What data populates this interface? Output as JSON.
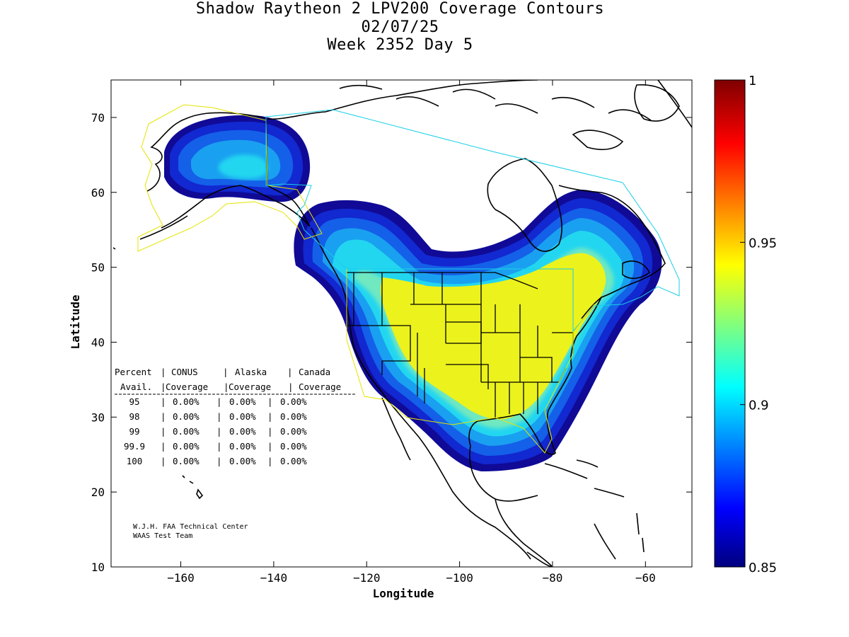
{
  "title": {
    "line1": "Shadow Raytheon 2 LPV200 Coverage Contours",
    "line2": "02/07/25",
    "line3": "Week 2352 Day 5"
  },
  "axes": {
    "xlabel": "Longitude",
    "ylabel": "Latitude",
    "xlim": [
      -175,
      -50
    ],
    "ylim": [
      10,
      75
    ],
    "xticks": [
      -160,
      -140,
      -120,
      -100,
      -80,
      -60
    ],
    "yticks": [
      10,
      20,
      30,
      40,
      50,
      60,
      70
    ]
  },
  "colorbar": {
    "min": 0.85,
    "max": 1,
    "ticks": [
      {
        "value": 0.85,
        "label": "0.85"
      },
      {
        "value": 0.9,
        "label": "0.9"
      },
      {
        "value": 0.95,
        "label": "0.95"
      },
      {
        "value": 1,
        "label": "1"
      }
    ]
  },
  "table": {
    "header1": [
      "Percent",
      "CONUS",
      "Alaska",
      "Canada"
    ],
    "header2": [
      "Avail.",
      "Coverage",
      "Coverage",
      "Coverage"
    ],
    "rows": [
      {
        "pct": "95",
        "conus": "0.00%",
        "alaska": "0.00%",
        "canada": "0.00%"
      },
      {
        "pct": "98",
        "conus": "0.00%",
        "alaska": "0.00%",
        "canada": "0.00%"
      },
      {
        "pct": "99",
        "conus": "0.00%",
        "alaska": "0.00%",
        "canada": "0.00%"
      },
      {
        "pct": "99.9",
        "conus": "0.00%",
        "alaska": "0.00%",
        "canada": "0.00%"
      },
      {
        "pct": "100",
        "conus": "0.00%",
        "alaska": "0.00%",
        "canada": "0.00%"
      }
    ]
  },
  "credit": {
    "line1": "W.J.H. FAA Technical Center",
    "line2": "WAAS Test Team"
  },
  "colors": {
    "yellow": "#ecf21c",
    "cyan": "#22d6f0",
    "blue_light": "#1aa0f0",
    "blue_mid": "#1460e8",
    "blue_dark": "#1228d0",
    "navy": "#100a96"
  }
}
